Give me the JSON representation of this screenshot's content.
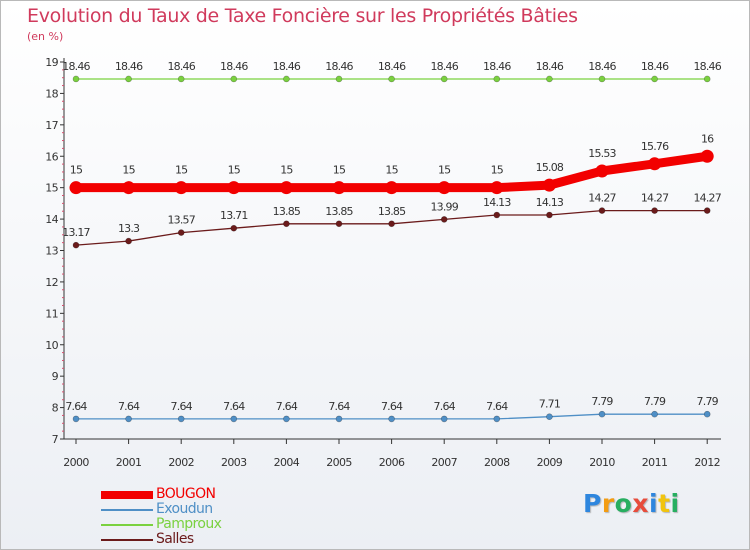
{
  "chart_data": {
    "type": "line",
    "title": "Evolution du Taux de Taxe Foncière sur les Propriétés Bâties",
    "subtitle": "(en %)",
    "xlabel": "",
    "ylabel": "",
    "x": [
      "2000",
      "2001",
      "2002",
      "2003",
      "2004",
      "2005",
      "2006",
      "2007",
      "2008",
      "2009",
      "2010",
      "2011",
      "2012"
    ],
    "ylim": [
      7,
      19
    ],
    "yticks": [
      "7",
      "8",
      "9",
      "10",
      "11",
      "12",
      "13",
      "14",
      "15",
      "16",
      "17",
      "18",
      "19"
    ],
    "series": [
      {
        "name": "Pamproux",
        "color": "#7ad13f",
        "values": [
          18.46,
          18.46,
          18.46,
          18.46,
          18.46,
          18.46,
          18.46,
          18.46,
          18.46,
          18.46,
          18.46,
          18.46,
          18.46
        ],
        "labels": [
          "18.46",
          "18.46",
          "18.46",
          "18.46",
          "18.46",
          "18.46",
          "18.46",
          "18.46",
          "18.46",
          "18.46",
          "18.46",
          "18.46",
          "18.46"
        ]
      },
      {
        "name": "BOUGON",
        "color": "#f20000",
        "values": [
          15,
          15,
          15,
          15,
          15,
          15,
          15,
          15,
          15,
          15.08,
          15.53,
          15.76,
          16
        ],
        "labels": [
          "15",
          "15",
          "15",
          "15",
          "15",
          "15",
          "15",
          "15",
          "15",
          "15.08",
          "15.53",
          "15.76",
          "16"
        ]
      },
      {
        "name": "Salles",
        "color": "#6b1b1b",
        "values": [
          13.17,
          13.3,
          13.57,
          13.71,
          13.85,
          13.85,
          13.85,
          13.99,
          14.13,
          14.13,
          14.27,
          14.27,
          14.27
        ],
        "labels": [
          "13.17",
          "13.3",
          "13.57",
          "13.71",
          "13.85",
          "13.85",
          "13.85",
          "13.99",
          "14.13",
          "14.13",
          "14.27",
          "14.27",
          "14.27"
        ]
      },
      {
        "name": "Exoudun",
        "color": "#4f8fc6",
        "values": [
          7.64,
          7.64,
          7.64,
          7.64,
          7.64,
          7.64,
          7.64,
          7.64,
          7.64,
          7.71,
          7.79,
          7.79,
          7.79
        ],
        "labels": [
          "7.64",
          "7.64",
          "7.64",
          "7.64",
          "7.64",
          "7.64",
          "7.64",
          "7.64",
          "7.64",
          "7.71",
          "7.79",
          "7.79",
          "7.79"
        ]
      }
    ],
    "legend": [
      {
        "name": "BOUGON",
        "color": "#f20000"
      },
      {
        "name": "Exoudun",
        "color": "#4f8fc6"
      },
      {
        "name": "Pamproux",
        "color": "#7ad13f"
      },
      {
        "name": "Salles",
        "color": "#6b1b1b"
      }
    ],
    "legend_position": "bottom-left"
  },
  "logo": {
    "letters": [
      "P",
      "r",
      "o",
      "x",
      "i",
      "t",
      "i"
    ],
    "colors": [
      "#2e86de",
      "#f39c12",
      "#27ae60",
      "#e74c3c",
      "#2e86de",
      "#f1c40f",
      "#27ae60"
    ]
  }
}
